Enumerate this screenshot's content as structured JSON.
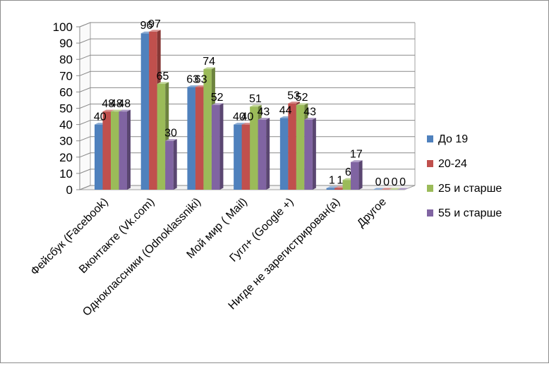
{
  "chart_data": {
    "type": "bar",
    "style": "3d-clustered-column",
    "categories": [
      "Фейсбук (Facebook)",
      "Вконтакте (Vk.com)",
      "Одноклассники (Odnoklassniki)",
      "Мой мир ( Mail)",
      "Гугл+ (Google +)",
      "Нигде не зарегистрирован(а)",
      "Другое"
    ],
    "series": [
      {
        "name": "До 19",
        "color": "#4F81BD",
        "values": [
          40,
          96,
          63,
          40,
          44,
          1,
          0
        ]
      },
      {
        "name": "20-24",
        "color": "#C0504D",
        "values": [
          48,
          97,
          63,
          40,
          53,
          1,
          0
        ]
      },
      {
        "name": "25 и старше",
        "color": "#9BBB59",
        "values": [
          48,
          65,
          74,
          51,
          52,
          6,
          0
        ]
      },
      {
        "name": "55 и старше",
        "color": "#8064A2",
        "values": [
          48,
          30,
          52,
          43,
          43,
          17,
          0
        ]
      }
    ],
    "ylim": [
      0,
      100
    ],
    "yticks": [
      0,
      10,
      20,
      30,
      40,
      50,
      60,
      70,
      80,
      90,
      100
    ],
    "grid": true,
    "legend": "right",
    "title": "",
    "xlabel": "",
    "ylabel": ""
  }
}
